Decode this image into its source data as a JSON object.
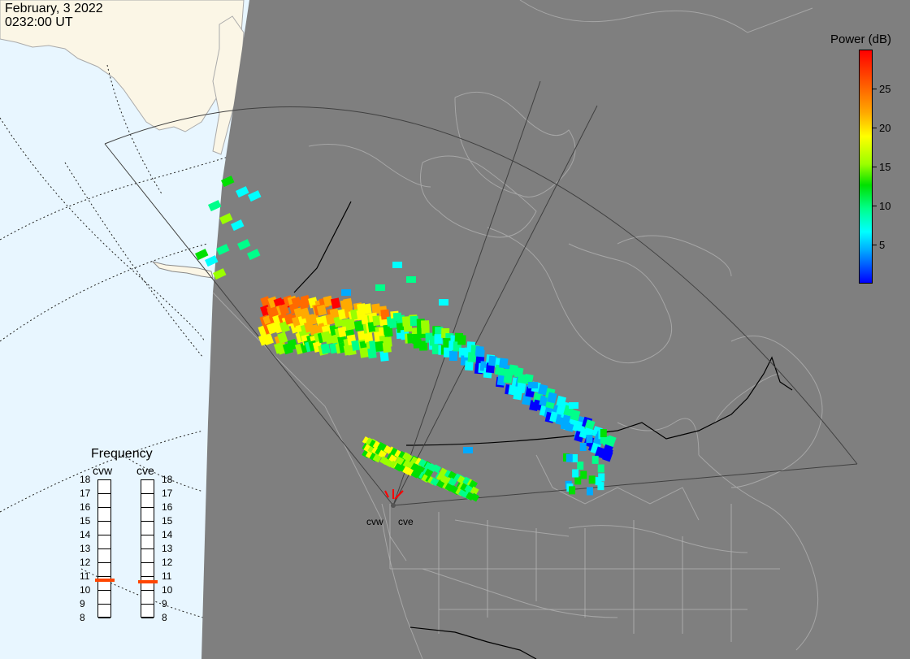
{
  "header": {
    "date": "February, 3 2022",
    "time": "0232:00 UT"
  },
  "radars": [
    {
      "code": "cvw"
    },
    {
      "code": "cve"
    }
  ],
  "colorbar": {
    "title": "Power (dB)",
    "ticks": [
      "25",
      "20",
      "15",
      "10",
      "5"
    ],
    "range": [
      0,
      30
    ],
    "colors": [
      "#0000ff",
      "#00aaff",
      "#00ffff",
      "#00ff8a",
      "#00e000",
      "#9aff00",
      "#ffff00",
      "#ffaa00",
      "#ff6a00",
      "#ff0000"
    ]
  },
  "frequency": {
    "title": "Frequency",
    "scale": [
      "18",
      "17",
      "16",
      "15",
      "14",
      "13",
      "12",
      "11",
      "10",
      "9",
      "8"
    ],
    "cvw_mhz": 10.7,
    "cve_mhz": 10.6
  },
  "colors": {
    "ocean": "#e8f6ff",
    "land_day": "#fbf6e6",
    "night": "#7f7f7f",
    "coast": "#a6a6a6",
    "fov": "#404040",
    "border": "#000000"
  }
}
